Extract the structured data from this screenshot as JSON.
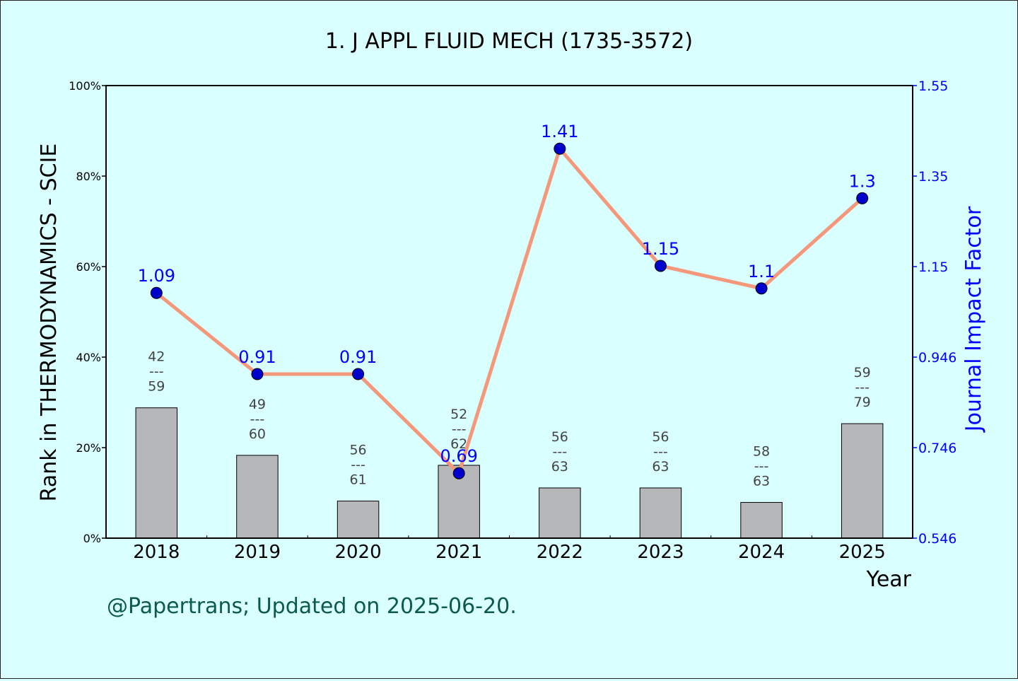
{
  "colors": {
    "background": "#d9ffff",
    "bar_fill": "#b6b7b9",
    "line": "#f4977a",
    "marker": "#0000cc",
    "right_axis": "#0000ff",
    "footer": "#0b5a4a"
  },
  "footer": "@Papertrans; Updated on 2025-06-20.",
  "chart_data": {
    "type": "bar",
    "title": "1. J APPL FLUID MECH (1735-3572)",
    "xlabel": "Year",
    "ylabel": "Rank in THERMODYNAMICS - SCIE",
    "y2label": "Journal Impact Factor",
    "categories": [
      "2018",
      "2019",
      "2020",
      "2021",
      "2022",
      "2023",
      "2024",
      "2025"
    ],
    "ylim": [
      0,
      100
    ],
    "yticks": [
      "0%",
      "20%",
      "40%",
      "60%",
      "80%",
      "100%"
    ],
    "y2lim": [
      0.546,
      1.55
    ],
    "y2ticks": [
      "0.546",
      "0.746",
      "0.946",
      "1.15",
      "1.35",
      "1.55"
    ],
    "bar_dividers": [
      "---",
      "---",
      "---",
      "---",
      "---",
      "---",
      "---",
      "---"
    ],
    "series": [
      {
        "name": "Rank",
        "axis": "left",
        "rank": [
          42,
          49,
          56,
          52,
          56,
          56,
          58,
          59
        ],
        "total": [
          59,
          60,
          61,
          62,
          63,
          63,
          63,
          79
        ],
        "values": [
          28.8,
          18.3,
          8.2,
          16.1,
          11.1,
          11.1,
          7.9,
          25.3
        ]
      },
      {
        "name": "Journal Impact Factor",
        "axis": "right",
        "values": [
          1.09,
          0.91,
          0.91,
          0.69,
          1.41,
          1.15,
          1.1,
          1.3
        ],
        "labels": [
          "1.09",
          "0.91",
          "0.91",
          "0.69",
          "1.41",
          "1.15",
          "1.1",
          "1.3"
        ]
      }
    ]
  }
}
